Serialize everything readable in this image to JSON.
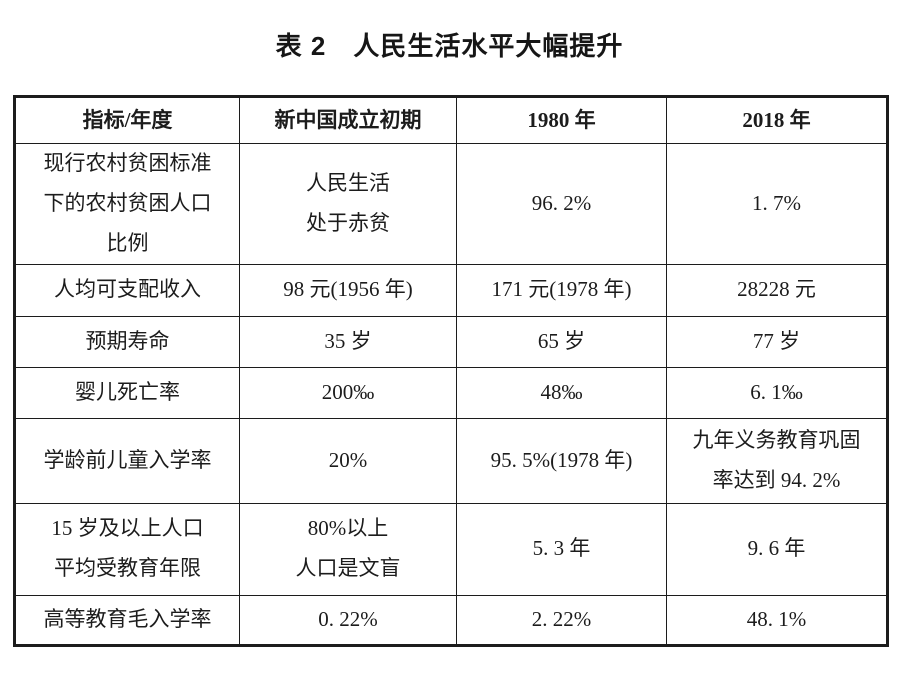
{
  "title": "表 2　人民生活水平大幅提升",
  "table": {
    "headers": [
      "指标/年度",
      "新中国成立初期",
      "1980 年",
      "2018 年"
    ],
    "rows": [
      [
        "现行农村贫困标准\n下的农村贫困人口\n比例",
        "人民生活\n处于赤贫",
        "96. 2%",
        "1. 7%"
      ],
      [
        "人均可支配收入",
        "98 元(1956 年)",
        "171 元(1978 年)",
        "28228 元"
      ],
      [
        "预期寿命",
        "35 岁",
        "65 岁",
        "77 岁"
      ],
      [
        "婴儿死亡率",
        "200‰",
        "48‰",
        "6. 1‰"
      ],
      [
        "学龄前儿童入学率",
        "20%",
        "95. 5%(1978 年)",
        "九年义务教育巩固\n率达到 94. 2%"
      ],
      [
        "15 岁及以上人口\n平均受教育年限",
        "80%以上\n人口是文盲",
        "5. 3 年",
        "9. 6 年"
      ],
      [
        "高等教育毛入学率",
        "0. 22%",
        "2. 22%",
        "48. 1%"
      ]
    ]
  },
  "colors": {
    "background": "#ffffff",
    "text": "#1c1c1c",
    "border": "#1c1c1c"
  }
}
